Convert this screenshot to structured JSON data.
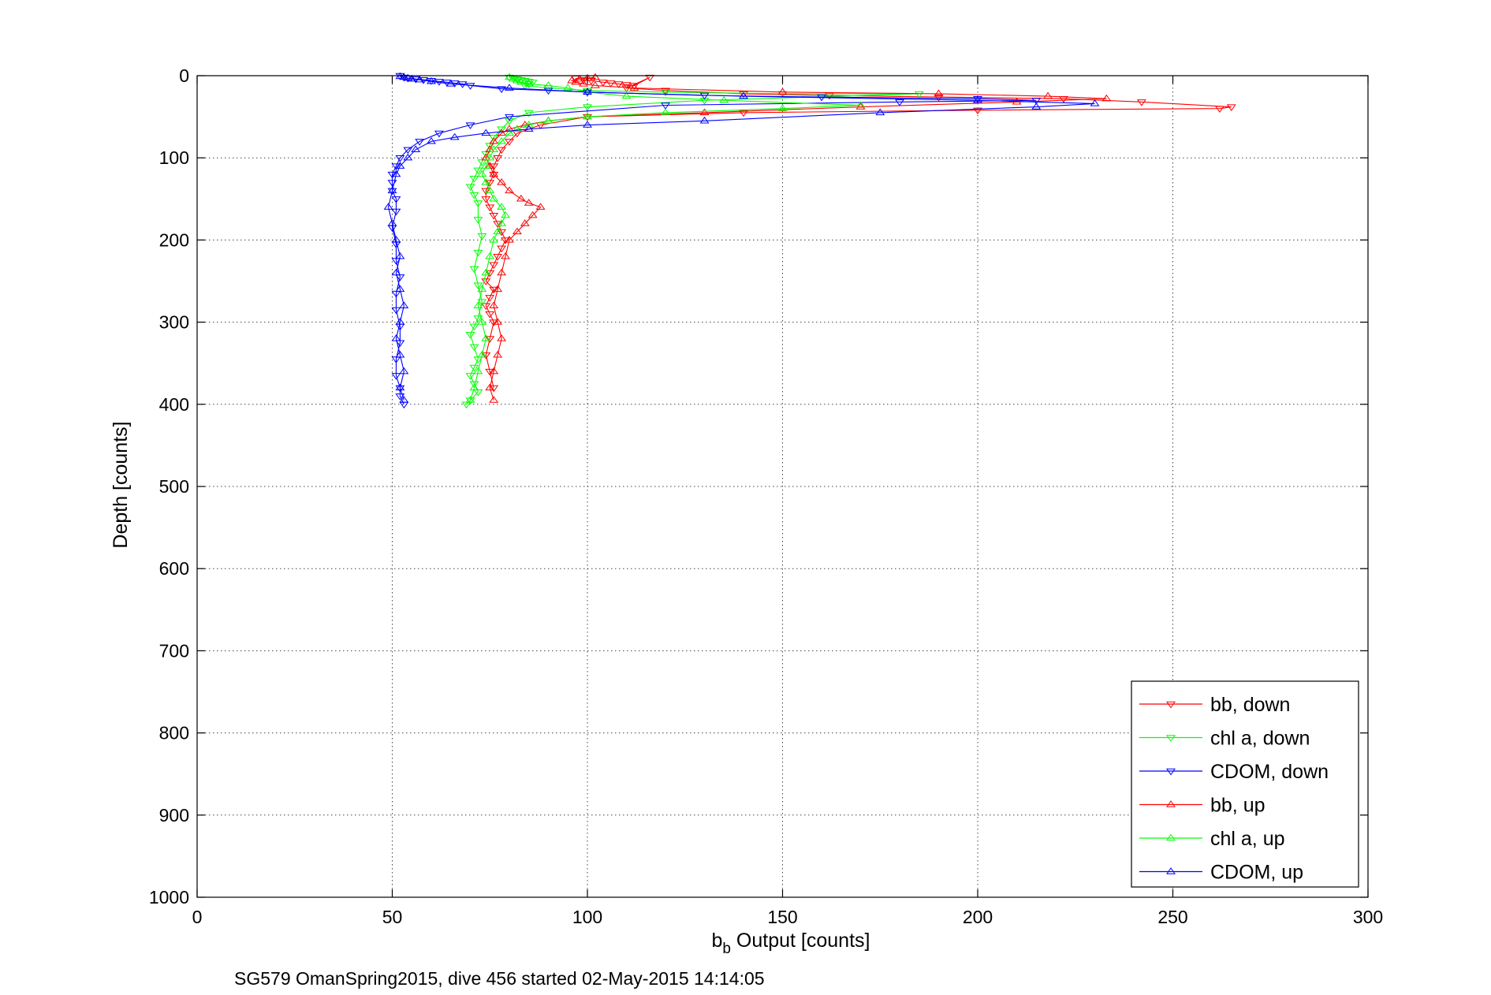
{
  "chart_data": {
    "type": "scatter",
    "xlabel_main": "b",
    "xlabel_sub": "b",
    "xlabel_rest": " Output [counts]",
    "ylabel": "Depth [counts]",
    "subtitle": "SG579 OmanSpring2015, dive 456 started 02-May-2015 14:14:05",
    "xlim": [
      0,
      300
    ],
    "ylim": [
      0,
      1000
    ],
    "y_reversed": true,
    "grid": true,
    "legend_position": "bottom-right",
    "x_ticks": [
      0,
      50,
      100,
      150,
      200,
      250,
      300
    ],
    "y_ticks": [
      0,
      100,
      200,
      300,
      400,
      500,
      600,
      700,
      800,
      900,
      1000
    ],
    "series": [
      {
        "name": "bb, down",
        "color": "#ff0000",
        "marker": "triangle-down",
        "x": [
          97,
          99,
          101,
          104,
          106,
          108,
          110,
          112,
          116,
          110,
          120,
          140,
          162,
          190,
          222,
          242,
          265,
          262,
          200,
          140,
          100,
          88,
          82,
          80,
          78,
          77,
          76,
          76,
          75,
          74,
          74,
          75,
          76,
          77,
          78,
          79,
          78,
          77,
          76,
          75,
          74,
          76,
          75,
          74,
          75,
          76,
          75,
          74,
          75,
          76
        ],
        "y": [
          3,
          5,
          6,
          8,
          9,
          10,
          11,
          12,
          2,
          15,
          18,
          22,
          24,
          26,
          28,
          32,
          38,
          40,
          42,
          45,
          50,
          60,
          70,
          80,
          90,
          100,
          110,
          120,
          130,
          140,
          150,
          160,
          170,
          180,
          190,
          200,
          210,
          220,
          230,
          240,
          250,
          260,
          270,
          280,
          290,
          300,
          320,
          340,
          360,
          380
        ]
      },
      {
        "name": "chl a, down",
        "color": "#00ff00",
        "marker": "triangle-down",
        "x": [
          80,
          81,
          82,
          83,
          84,
          85,
          86,
          85,
          84,
          90,
          100,
          120,
          150,
          185,
          130,
          100,
          85,
          80,
          78,
          76,
          75,
          74,
          73,
          72,
          71,
          70,
          71,
          72,
          72,
          73,
          72,
          71,
          72,
          73,
          72,
          71,
          70,
          71,
          72,
          71,
          70,
          71,
          72,
          70,
          69
        ],
        "y": [
          2,
          3,
          4,
          5,
          6,
          7,
          8,
          10,
          12,
          15,
          18,
          20,
          22,
          22,
          30,
          38,
          45,
          55,
          65,
          75,
          85,
          95,
          105,
          115,
          125,
          135,
          145,
          155,
          175,
          195,
          215,
          235,
          255,
          275,
          295,
          305,
          315,
          330,
          345,
          355,
          365,
          375,
          385,
          395,
          400
        ]
      },
      {
        "name": "CDOM, down",
        "color": "#0000ff",
        "marker": "triangle-down",
        "x": [
          52,
          53,
          54,
          56,
          58,
          60,
          62,
          64,
          66,
          68,
          70,
          78,
          90,
          100,
          130,
          160,
          200,
          215,
          180,
          120,
          80,
          70,
          62,
          57,
          54,
          52,
          51,
          50,
          50,
          50,
          51,
          51,
          50,
          51,
          51,
          52,
          51,
          51,
          52,
          52,
          51,
          51,
          52,
          52,
          53
        ],
        "y": [
          0,
          2,
          3,
          4,
          5,
          6,
          7,
          8,
          9,
          10,
          12,
          16,
          18,
          20,
          24,
          26,
          28,
          30,
          32,
          36,
          50,
          60,
          70,
          80,
          90,
          100,
          110,
          120,
          130,
          140,
          150,
          165,
          185,
          205,
          225,
          245,
          265,
          285,
          305,
          325,
          345,
          365,
          380,
          390,
          400
        ]
      },
      {
        "name": "bb, up",
        "color": "#ff0000",
        "marker": "triangle-up",
        "x": [
          76,
          75,
          76,
          77,
          78,
          77,
          76,
          77,
          78,
          79,
          80,
          82,
          84,
          86,
          88,
          85,
          83,
          80,
          78,
          76,
          75,
          74,
          75,
          76,
          78,
          80,
          84,
          90,
          100,
          130,
          170,
          210,
          233,
          218,
          190,
          150,
          112,
          102,
          99,
          97,
          96,
          98,
          100,
          102
        ],
        "y": [
          395,
          380,
          360,
          340,
          320,
          300,
          280,
          260,
          240,
          220,
          200,
          190,
          180,
          170,
          160,
          155,
          150,
          140,
          130,
          120,
          110,
          100,
          90,
          80,
          70,
          65,
          60,
          55,
          50,
          45,
          38,
          32,
          28,
          25,
          22,
          20,
          15,
          12,
          10,
          8,
          6,
          4,
          3,
          2
        ]
      },
      {
        "name": "chl a, up",
        "color": "#00ff00",
        "marker": "triangle-up",
        "x": [
          70,
          71,
          72,
          73,
          74,
          73,
          72,
          73,
          74,
          75,
          76,
          77,
          78,
          79,
          78,
          76,
          75,
          74,
          73,
          74,
          75,
          76,
          78,
          80,
          82,
          85,
          90,
          100,
          120,
          150,
          170,
          135,
          110,
          100,
          95,
          90,
          85,
          83,
          82,
          81,
          80
        ],
        "y": [
          395,
          380,
          360,
          340,
          320,
          300,
          280,
          260,
          240,
          220,
          200,
          190,
          180,
          170,
          160,
          150,
          140,
          130,
          120,
          110,
          100,
          90,
          80,
          70,
          65,
          60,
          55,
          50,
          45,
          40,
          36,
          30,
          25,
          20,
          15,
          12,
          10,
          8,
          6,
          4,
          2
        ]
      },
      {
        "name": "CDOM, up",
        "color": "#0000ff",
        "marker": "triangle-up",
        "x": [
          53,
          52,
          53,
          52,
          51,
          52,
          53,
          52,
          51,
          52,
          51,
          50,
          49,
          50,
          51,
          52,
          54,
          56,
          60,
          66,
          74,
          85,
          100,
          130,
          175,
          215,
          230,
          200,
          140,
          100,
          80,
          65,
          60,
          57,
          55,
          54,
          53,
          52
        ],
        "y": [
          395,
          380,
          360,
          340,
          320,
          300,
          280,
          260,
          240,
          220,
          200,
          180,
          160,
          140,
          120,
          110,
          100,
          90,
          80,
          75,
          70,
          65,
          60,
          55,
          45,
          38,
          34,
          30,
          25,
          20,
          15,
          10,
          7,
          5,
          4,
          3,
          2,
          1
        ]
      }
    ]
  }
}
